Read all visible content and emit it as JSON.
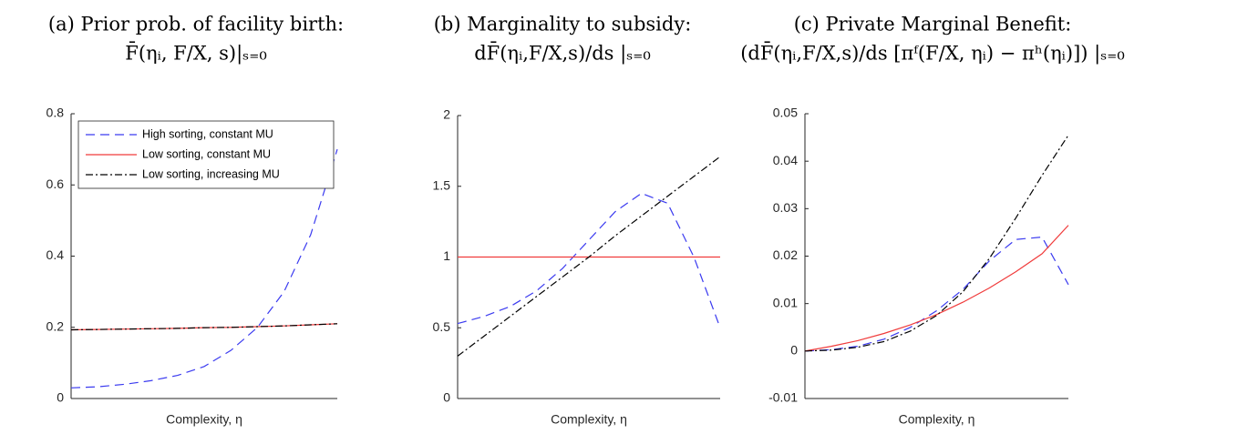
{
  "chart_data": [
    {
      "type": "line",
      "title": [
        "(a) Prior prob. of facility birth:",
        "F̄(ηᵢ, F/X, s)|ₛ₌₀"
      ],
      "xlabel": "Complexity, η",
      "x": [
        0,
        0.1,
        0.2,
        0.3,
        0.4,
        0.5,
        0.6,
        0.7,
        0.8,
        0.9,
        1
      ],
      "xlim": [
        0,
        1
      ],
      "ylim": [
        0,
        0.8
      ],
      "yticks": [
        0,
        0.2,
        0.4,
        0.6,
        0.8
      ],
      "legend": "upper left",
      "series": [
        {
          "name": "High sorting, constant MU",
          "color": "#3b3bf0",
          "linestyle": "dashed",
          "values": [
            0.03,
            0.033,
            0.04,
            0.05,
            0.065,
            0.09,
            0.135,
            0.2,
            0.3,
            0.46,
            0.7
          ]
        },
        {
          "name": "Low sorting, constant MU",
          "color": "#f03b3b",
          "linestyle": "solid",
          "values": [
            0.193,
            0.194,
            0.195,
            0.196,
            0.197,
            0.199,
            0.2,
            0.202,
            0.204,
            0.207,
            0.21
          ]
        },
        {
          "name": "Low sorting, increasing MU",
          "color": "#000000",
          "linestyle": "dashdot",
          "values": [
            0.193,
            0.194,
            0.195,
            0.196,
            0.197,
            0.199,
            0.2,
            0.202,
            0.204,
            0.207,
            0.21
          ]
        }
      ]
    },
    {
      "type": "line",
      "title": [
        "(b) Marginality to subsidy:",
        "dF̄(ηᵢ,F/X,s)/ds |ₛ₌₀"
      ],
      "xlabel": "Complexity, η",
      "x": [
        0,
        0.1,
        0.2,
        0.3,
        0.4,
        0.5,
        0.6,
        0.7,
        0.8,
        0.9,
        1
      ],
      "xlim": [
        0,
        1
      ],
      "ylim": [
        0,
        2
      ],
      "yticks": [
        0,
        0.5,
        1,
        1.5,
        2
      ],
      "series": [
        {
          "color": "#3b3bf0",
          "linestyle": "dashed",
          "values": [
            0.53,
            0.58,
            0.65,
            0.76,
            0.92,
            1.12,
            1.32,
            1.45,
            1.38,
            1.0,
            0.5
          ]
        },
        {
          "color": "#f03b3b",
          "linestyle": "solid",
          "values": [
            1,
            1,
            1,
            1,
            1,
            1,
            1,
            1,
            1,
            1,
            1
          ]
        },
        {
          "color": "#000000",
          "linestyle": "dashdot",
          "values": [
            0.3,
            0.44,
            0.58,
            0.72,
            0.86,
            1.0,
            1.15,
            1.29,
            1.43,
            1.57,
            1.71
          ]
        }
      ]
    },
    {
      "type": "line",
      "title": [
        "(c) Private Marginal Benefit:",
        "(dF̄(ηᵢ,F/X,s)/ds [πᶠ(F/X, ηᵢ) − πʰ(ηᵢ)]) |ₛ₌₀"
      ],
      "xlabel": "Complexity, η",
      "x": [
        0,
        0.1,
        0.2,
        0.3,
        0.4,
        0.5,
        0.6,
        0.7,
        0.8,
        0.9,
        1
      ],
      "xlim": [
        0,
        1
      ],
      "ylim": [
        -0.01,
        0.05
      ],
      "yticks": [
        -0.01,
        0,
        0.01,
        0.02,
        0.03,
        0.04,
        0.05
      ],
      "series": [
        {
          "color": "#3b3bf0",
          "linestyle": "dashed",
          "values": [
            0,
            0.0003,
            0.001,
            0.0025,
            0.005,
            0.0085,
            0.013,
            0.019,
            0.0235,
            0.024,
            0.014
          ]
        },
        {
          "color": "#f03b3b",
          "linestyle": "solid",
          "values": [
            0,
            0.001,
            0.0022,
            0.0037,
            0.0055,
            0.0077,
            0.0103,
            0.0133,
            0.0167,
            0.0205,
            0.0265
          ]
        },
        {
          "color": "#000000",
          "linestyle": "dashdot",
          "values": [
            0,
            0.0002,
            0.0008,
            0.002,
            0.0042,
            0.0075,
            0.0125,
            0.0195,
            0.028,
            0.037,
            0.0455
          ]
        }
      ]
    }
  ]
}
